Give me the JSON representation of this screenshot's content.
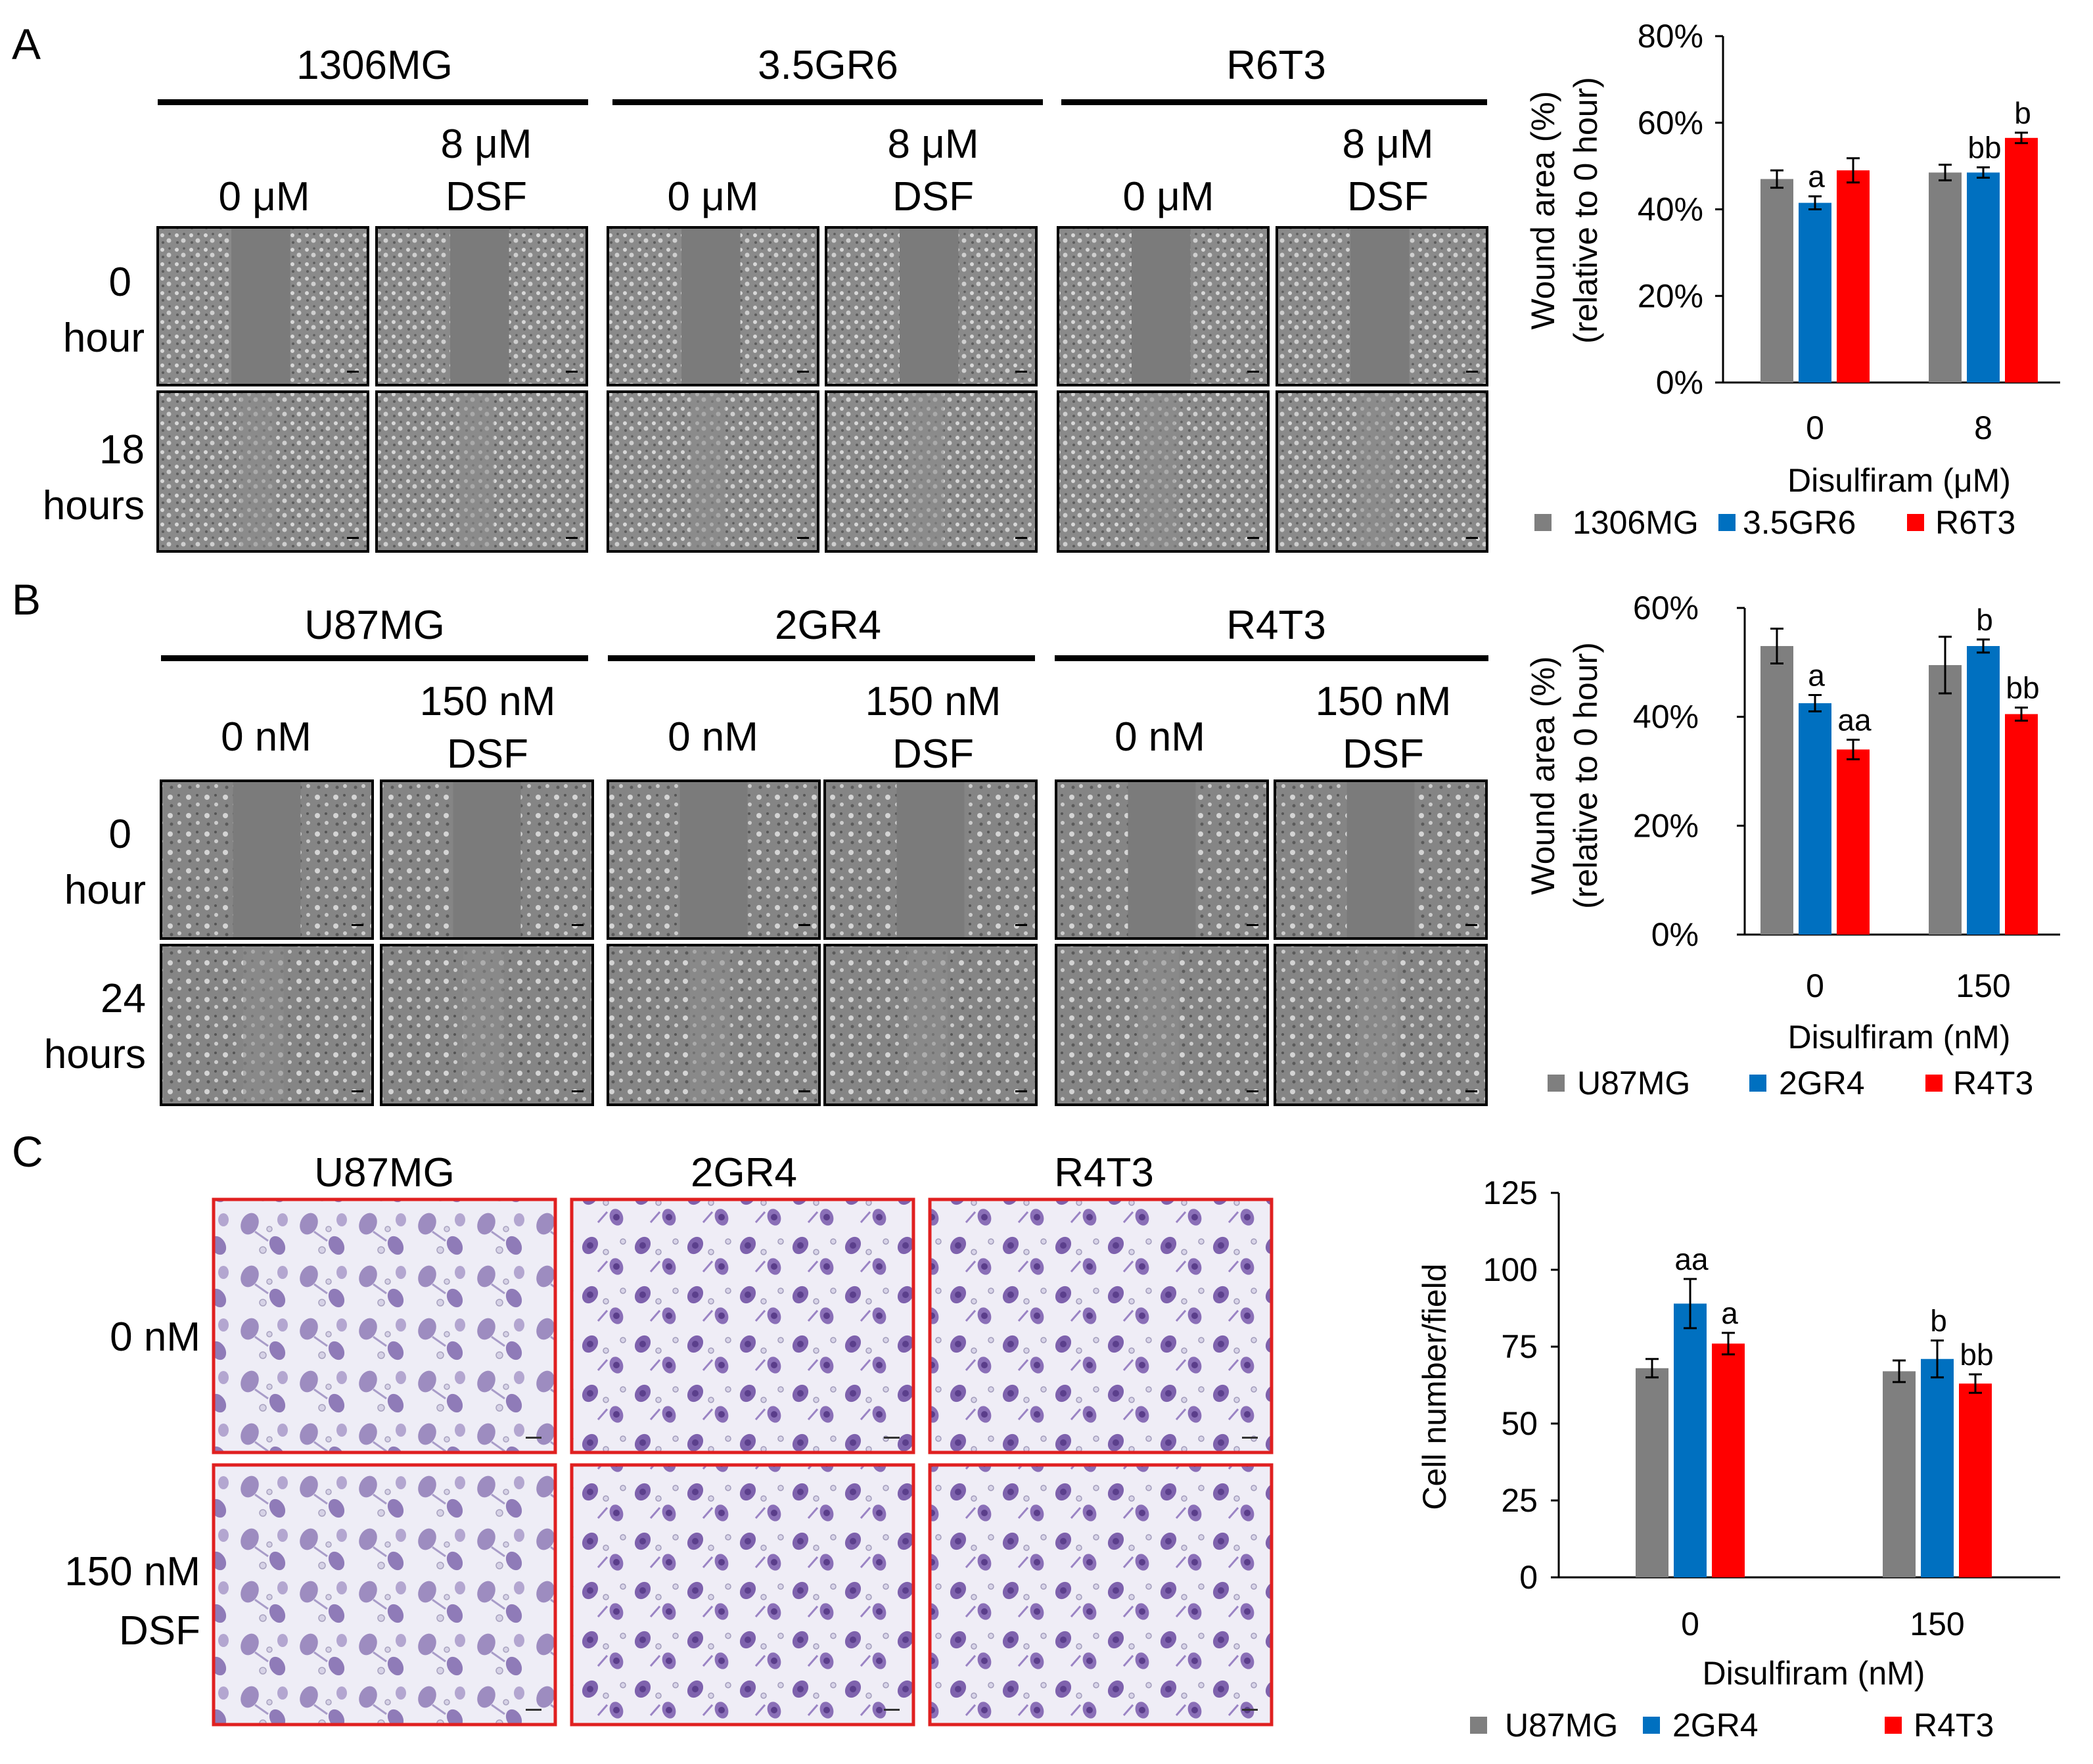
{
  "colors": {
    "gray": "#7f7f7f",
    "blue": "#0070c0",
    "red": "#ff0000",
    "black": "#000000",
    "border_red": "#e02020"
  },
  "panelA": {
    "letter": "A",
    "groups": [
      "1306MG",
      "3.5GR6",
      "R6T3"
    ],
    "conds": [
      {
        "l1": "",
        "l2": "0 μM"
      },
      {
        "l1": "8 μM",
        "l2": "DSF"
      }
    ],
    "rows": [
      {
        "l1": "0",
        "l2": "hour"
      },
      {
        "l1": "18",
        "l2": "hours"
      }
    ]
  },
  "panelB": {
    "letter": "B",
    "groups": [
      "U87MG",
      "2GR4",
      "R4T3"
    ],
    "conds": [
      {
        "l1": "",
        "l2": "0  nM"
      },
      {
        "l1": "150 nM",
        "l2": "DSF"
      }
    ],
    "rows": [
      {
        "l1": "0",
        "l2": "hour"
      },
      {
        "l1": "24",
        "l2": "hours"
      }
    ]
  },
  "panelC": {
    "letter": "C",
    "groups": [
      "U87MG",
      "2GR4",
      "R4T3"
    ],
    "rows": [
      {
        "l1": "",
        "l2": "0 nM"
      },
      {
        "l1": "150 nM",
        "l2": "DSF"
      }
    ]
  },
  "chart_data": [
    {
      "id": "chartA",
      "type": "bar",
      "ylabel_line1": "Wound area (%)",
      "ylabel_line2": "(relative to 0 hour)",
      "xlabel": "Disulfiram (μM)",
      "categories": [
        "0",
        "8"
      ],
      "ylim": [
        0,
        80
      ],
      "yticks": [
        0,
        20,
        40,
        60,
        80
      ],
      "ytick_labels": [
        "0%",
        "20%",
        "40%",
        "60%",
        "80%"
      ],
      "series": [
        {
          "name": "1306MG",
          "color": "#7f7f7f",
          "values": [
            47,
            48.5
          ],
          "errors": [
            2,
            1.8
          ],
          "labels": [
            "",
            ""
          ]
        },
        {
          "name": "3.5GR6",
          "color": "#0070c0",
          "values": [
            41.5,
            48.5
          ],
          "errors": [
            1.5,
            1.2
          ],
          "labels": [
            "a",
            "bb"
          ]
        },
        {
          "name": "R6T3",
          "color": "#ff0000",
          "values": [
            49,
            56.5
          ],
          "errors": [
            2.8,
            1.2
          ],
          "labels": [
            "",
            "b"
          ]
        }
      ]
    },
    {
      "id": "chartB",
      "type": "bar",
      "ylabel_line1": "Wound area (%)",
      "ylabel_line2": "(relative to 0 hour)",
      "xlabel": "Disulfiram (nM)",
      "categories": [
        "0",
        "150"
      ],
      "ylim": [
        0,
        60
      ],
      "yticks": [
        0,
        20,
        40,
        60
      ],
      "ytick_labels": [
        "0%",
        "20%",
        "40%",
        "60%"
      ],
      "series": [
        {
          "name": "U87MG",
          "color": "#7f7f7f",
          "values": [
            53,
            49.5
          ],
          "errors": [
            3.2,
            5.2
          ],
          "labels": [
            "",
            ""
          ]
        },
        {
          "name": "2GR4",
          "color": "#0070c0",
          "values": [
            42.5,
            53
          ],
          "errors": [
            1.5,
            1.2
          ],
          "labels": [
            "a",
            "b"
          ]
        },
        {
          "name": "R4T3",
          "color": "#ff0000",
          "values": [
            34,
            40.5
          ],
          "errors": [
            1.8,
            1.2
          ],
          "labels": [
            "aa",
            "bb"
          ]
        }
      ]
    },
    {
      "id": "chartC",
      "type": "bar",
      "ylabel_line1": "Cell number/field",
      "ylabel_line2": "",
      "xlabel": "Disulfiram (nM)",
      "categories": [
        "0",
        "150"
      ],
      "ylim": [
        0,
        125
      ],
      "yticks": [
        0,
        25,
        50,
        75,
        100,
        125
      ],
      "ytick_labels": [
        "0",
        "25",
        "50",
        "75",
        "100",
        "125"
      ],
      "series": [
        {
          "name": "U87MG",
          "color": "#7f7f7f",
          "values": [
            68,
            67
          ],
          "errors": [
            3,
            3.5
          ],
          "labels": [
            "",
            ""
          ]
        },
        {
          "name": "2GR4",
          "color": "#0070c0",
          "values": [
            89,
            71
          ],
          "errors": [
            8,
            6
          ],
          "labels": [
            "aa",
            "b"
          ]
        },
        {
          "name": "R4T3",
          "color": "#ff0000",
          "values": [
            76,
            63
          ],
          "errors": [
            3.5,
            3
          ],
          "labels": [
            "a",
            "bb"
          ]
        }
      ]
    }
  ]
}
